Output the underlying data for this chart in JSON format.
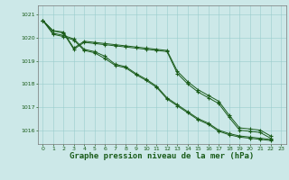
{
  "background_color": "#cce8e8",
  "grid_color": "#99cccc",
  "line_color": "#1a5c1a",
  "xlabel": "Graphe pression niveau de la mer (hPa)",
  "xlabel_fontsize": 6.5,
  "xlim": [
    -0.5,
    23.5
  ],
  "ylim": [
    1015.4,
    1021.4
  ],
  "yticks": [
    1016,
    1017,
    1018,
    1019,
    1020,
    1021
  ],
  "xticks": [
    0,
    1,
    2,
    3,
    4,
    5,
    6,
    7,
    8,
    9,
    10,
    11,
    12,
    13,
    14,
    15,
    16,
    17,
    18,
    19,
    20,
    21,
    22,
    23
  ],
  "series1_x": [
    0,
    1,
    2,
    3,
    4,
    5,
    6,
    7,
    8,
    9,
    10,
    11,
    12,
    13,
    14,
    15,
    16,
    17,
    18,
    19,
    20,
    21,
    22
  ],
  "series1_y": [
    1020.75,
    1020.3,
    1020.25,
    1019.55,
    1019.85,
    1019.8,
    1019.75,
    1019.7,
    1019.65,
    1019.6,
    1019.55,
    1019.5,
    1019.45,
    1018.55,
    1018.1,
    1017.75,
    1017.5,
    1017.25,
    1016.65,
    1016.1,
    1016.05,
    1016.0,
    1015.75
  ],
  "series2_x": [
    0,
    1,
    2,
    3,
    4,
    5,
    6,
    7,
    8,
    9,
    10,
    11,
    12,
    13,
    14,
    15,
    16,
    17,
    18,
    19,
    20,
    21,
    22
  ],
  "series2_y": [
    1020.75,
    1020.3,
    1020.2,
    1019.5,
    1019.8,
    1019.75,
    1019.7,
    1019.65,
    1019.6,
    1019.55,
    1019.5,
    1019.45,
    1019.4,
    1018.45,
    1018.0,
    1017.65,
    1017.4,
    1017.15,
    1016.55,
    1016.0,
    1015.95,
    1015.9,
    1015.65
  ],
  "series3_x": [
    0,
    1,
    2,
    3,
    4,
    5,
    6,
    7,
    8,
    9,
    10,
    11,
    12,
    13,
    14,
    15,
    16,
    17,
    18,
    19,
    20,
    21,
    22
  ],
  "series3_y": [
    1020.75,
    1020.2,
    1020.1,
    1019.95,
    1019.5,
    1019.4,
    1019.2,
    1018.85,
    1018.75,
    1018.45,
    1018.2,
    1017.9,
    1017.4,
    1017.1,
    1016.8,
    1016.5,
    1016.3,
    1016.0,
    1015.85,
    1015.75,
    1015.7,
    1015.65,
    1015.6
  ],
  "series4_x": [
    0,
    1,
    2,
    3,
    4,
    5,
    6,
    7,
    8,
    9,
    10,
    11,
    12,
    13,
    14,
    15,
    16,
    17,
    18,
    19,
    20,
    21,
    22
  ],
  "series4_y": [
    1020.75,
    1020.15,
    1020.05,
    1019.9,
    1019.45,
    1019.35,
    1019.1,
    1018.8,
    1018.7,
    1018.4,
    1018.15,
    1017.85,
    1017.35,
    1017.05,
    1016.75,
    1016.45,
    1016.25,
    1015.95,
    1015.8,
    1015.7,
    1015.65,
    1015.6,
    1015.55
  ]
}
